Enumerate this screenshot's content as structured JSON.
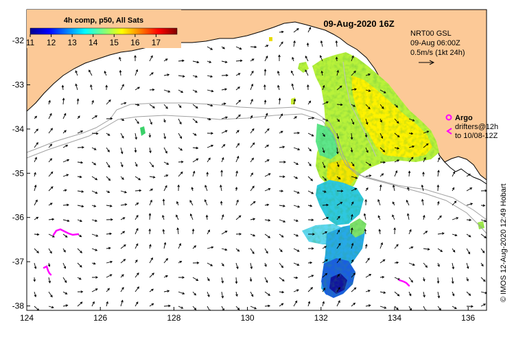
{
  "map": {
    "date_title": "09-Aug-2020 16Z",
    "colorbar": {
      "title": "4h comp, p50, All Sats",
      "min": 11,
      "max": 18,
      "tick_values": [
        11,
        12,
        13,
        14,
        15,
        16,
        17
      ],
      "tick_labels": [
        "11",
        "12",
        "13",
        "14",
        "15",
        "16",
        "17"
      ],
      "colors": [
        "#00008f",
        "#0000ff",
        "#007fff",
        "#00ffff",
        "#7fff7f",
        "#ffff00",
        "#ff7f00",
        "#ff0000",
        "#7f0000"
      ]
    },
    "current_info": {
      "line1": "NRT00 GSL",
      "line2": "09-Aug 06:00Z",
      "line3": "0.5m/s (1kt 24h)"
    },
    "argo": {
      "label": "Argo",
      "drifters_line1": "drifters@12h",
      "drifters_line2": "to 10/08-12Z",
      "color": "#ff00ff"
    },
    "credit": "© IMOS 12-Aug-2020 12:49 Hobart",
    "x_axis": {
      "min": 124,
      "max": 136.5,
      "ticks": [
        124,
        126,
        128,
        130,
        132,
        134,
        136
      ],
      "tick_labels": [
        "124",
        "126",
        "128",
        "130",
        "132",
        "134",
        "136"
      ]
    },
    "y_axis": {
      "min": -38.1,
      "max": -31.3,
      "ticks": [
        -32,
        -33,
        -34,
        -35,
        -36,
        -37,
        -38
      ],
      "tick_labels": [
        "-32",
        "-33",
        "-34",
        "-35",
        "-36",
        "-37",
        "-38"
      ]
    },
    "colors": {
      "land": "#fcc997",
      "sea": "#ffffff",
      "isobath": "#a0a0a0",
      "arrow": "#000000"
    }
  }
}
